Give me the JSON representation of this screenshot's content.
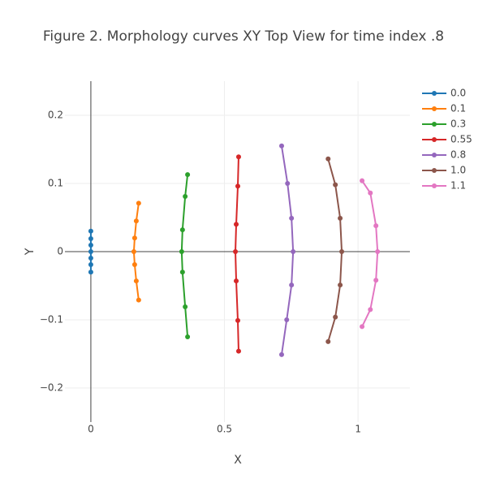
{
  "chart_data": {
    "type": "line",
    "title": "Figure 2. Morphology curves XY Top View for time index .8",
    "x_label": "X",
    "y_label": "Y",
    "xlim": [
      -0.097,
      1.194
    ],
    "ylim": [
      -0.25,
      0.25
    ],
    "xticks": [
      0,
      0.5,
      1
    ],
    "yticks": [
      {
        "value": -0.2,
        "label": "−0.2"
      },
      {
        "value": -0.1,
        "label": "−0.1"
      },
      0,
      0.1,
      0.2
    ],
    "grid": true,
    "legend": "top-right",
    "series": [
      {
        "name": "0.0",
        "color": "#1f77b4",
        "x": [
          0,
          0,
          0,
          0,
          0,
          0,
          0
        ],
        "values": [
          0.03,
          0.019,
          0.0095,
          0,
          -0.0095,
          -0.019,
          -0.03
        ]
      },
      {
        "name": "0.1",
        "color": "#ff7f0e",
        "x": [
          0.179,
          0.17,
          0.164,
          0.161,
          0.164,
          0.17,
          0.179
        ],
        "values": [
          0.071,
          0.045,
          0.02,
          0,
          -0.019,
          -0.043,
          -0.071
        ]
      },
      {
        "name": "0.3",
        "color": "#2ca02c",
        "x": [
          0.362,
          0.353,
          0.343,
          0.34,
          0.343,
          0.353,
          0.362
        ],
        "values": [
          0.113,
          0.081,
          0.032,
          0,
          -0.03,
          -0.081,
          -0.125
        ]
      },
      {
        "name": "0.55",
        "color": "#d62728",
        "x": [
          0.553,
          0.55,
          0.544,
          0.541,
          0.544,
          0.55,
          0.553
        ],
        "values": [
          0.139,
          0.096,
          0.04,
          0,
          -0.043,
          -0.101,
          -0.146
        ]
      },
      {
        "name": "0.8",
        "color": "#9467bd",
        "x": [
          0.714,
          0.736,
          0.751,
          0.757,
          0.751,
          0.733,
          0.714
        ],
        "values": [
          0.155,
          0.1,
          0.049,
          0,
          -0.049,
          -0.1,
          -0.151
        ]
      },
      {
        "name": "1.0",
        "color": "#8c564b",
        "x": [
          0.888,
          0.915,
          0.933,
          0.939,
          0.933,
          0.915,
          0.888
        ],
        "values": [
          0.136,
          0.098,
          0.049,
          0,
          -0.049,
          -0.096,
          -0.132
        ]
      },
      {
        "name": "1.1",
        "color": "#e377c2",
        "x": [
          1.015,
          1.046,
          1.067,
          1.073,
          1.067,
          1.046,
          1.015
        ],
        "values": [
          0.104,
          0.086,
          0.038,
          0,
          -0.042,
          -0.085,
          -0.11
        ]
      }
    ]
  }
}
